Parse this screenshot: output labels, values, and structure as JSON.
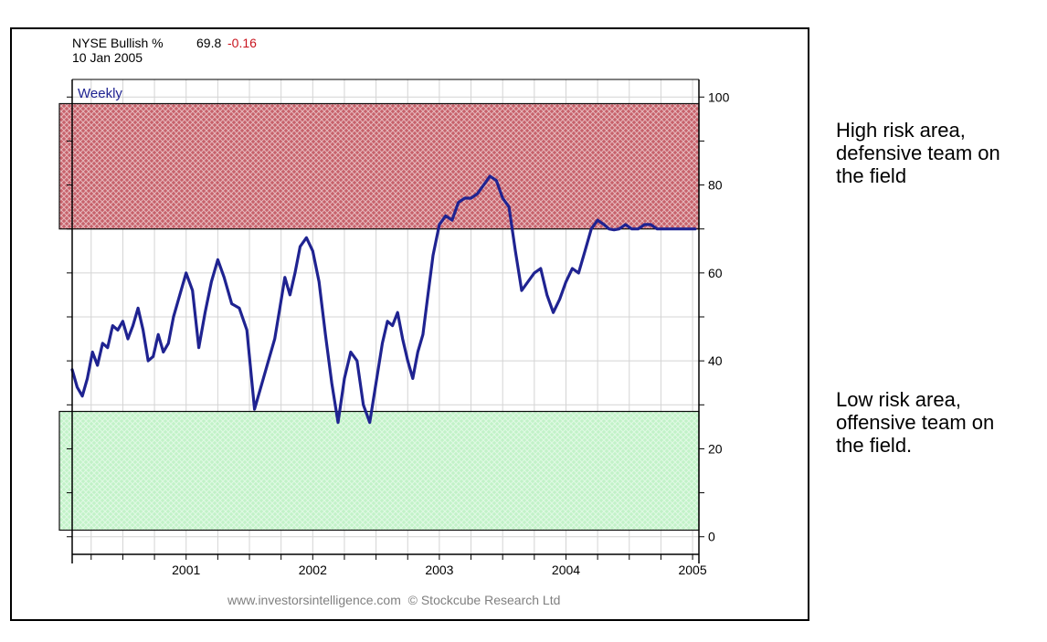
{
  "chart_data": {
    "type": "line",
    "title": {
      "series_name": "NYSE Bullish %",
      "last_value": "69.8",
      "change": "-0.16",
      "date": "10 Jan 2005"
    },
    "period_label": "Weekly",
    "footer": "www.investorsintelligence.com  © Stockcube Research Ltd",
    "x_ticks": [
      {
        "label": "2001",
        "value": 2001.0
      },
      {
        "label": "2002",
        "value": 2002.0
      },
      {
        "label": "2003",
        "value": 2003.0
      },
      {
        "label": "2004",
        "value": 2004.0
      },
      {
        "label": "2005",
        "value": 2005.0
      }
    ],
    "y_ticks": [
      {
        "label": "0",
        "value": 0
      },
      {
        "label": "20",
        "value": 20
      },
      {
        "label": "40",
        "value": 40
      },
      {
        "label": "60",
        "value": 60
      },
      {
        "label": "80",
        "value": 80
      },
      {
        "label": "100",
        "value": 100
      }
    ],
    "xlim": [
      2000.1,
      2005.05
    ],
    "ylim": [
      -4,
      104
    ],
    "grid": true,
    "bands": [
      {
        "name": "high-risk-band",
        "from": 70,
        "to": 98.5,
        "color": "#c0505a"
      },
      {
        "name": "low-risk-band",
        "from": 1.5,
        "to": 28.5,
        "color": "#b6efc0"
      }
    ],
    "series": [
      {
        "color": "#1f2391",
        "x": [
          2000.1,
          2000.14,
          2000.18,
          2000.22,
          2000.26,
          2000.3,
          2000.34,
          2000.38,
          2000.42,
          2000.46,
          2000.5,
          2000.54,
          2000.58,
          2000.62,
          2000.66,
          2000.7,
          2000.74,
          2000.78,
          2000.82,
          2000.86,
          2000.9,
          2000.95,
          2001.0,
          2001.05,
          2001.1,
          2001.15,
          2001.2,
          2001.25,
          2001.3,
          2001.36,
          2001.42,
          2001.48,
          2001.54,
          2001.6,
          2001.65,
          2001.7,
          2001.74,
          2001.78,
          2001.82,
          2001.86,
          2001.9,
          2001.95,
          2002.0,
          2002.05,
          2002.1,
          2002.15,
          2002.2,
          2002.25,
          2002.3,
          2002.35,
          2002.4,
          2002.45,
          2002.5,
          2002.55,
          2002.59,
          2002.63,
          2002.67,
          2002.71,
          2002.75,
          2002.79,
          2002.83,
          2002.87,
          2002.91,
          2002.95,
          2003.0,
          2003.05,
          2003.1,
          2003.15,
          2003.2,
          2003.25,
          2003.3,
          2003.35,
          2003.4,
          2003.45,
          2003.5,
          2003.55,
          2003.6,
          2003.65,
          2003.7,
          2003.75,
          2003.8,
          2003.85,
          2003.9,
          2003.95,
          2004.0,
          2004.05,
          2004.1,
          2004.15,
          2004.2,
          2004.25,
          2004.3,
          2004.34,
          2004.38,
          2004.42,
          2004.47,
          2004.52,
          2004.57,
          2004.62,
          2004.67,
          2004.72,
          2004.77,
          2004.82,
          2004.87,
          2004.92,
          2004.97,
          2005.02
        ],
        "y": [
          38,
          34,
          32,
          36,
          42,
          39,
          44,
          43,
          48,
          47,
          49,
          45,
          48,
          52,
          47,
          40,
          41,
          46,
          42,
          44,
          50,
          55,
          60,
          56,
          43,
          51,
          58,
          63,
          59,
          53,
          52,
          47,
          29,
          35,
          40,
          45,
          52,
          59,
          55,
          60,
          66,
          68,
          65,
          58,
          46,
          35,
          26,
          36,
          42,
          40,
          30,
          26,
          35,
          44,
          49,
          48,
          51,
          45,
          40,
          36,
          42,
          46,
          55,
          64,
          71,
          73,
          72,
          76,
          77,
          77,
          78,
          80,
          82,
          81,
          77,
          75,
          65,
          56,
          58,
          60,
          61,
          55,
          51,
          54,
          58,
          61,
          60,
          65,
          70,
          72,
          71,
          70,
          69.8,
          70,
          71,
          70,
          70,
          71,
          71,
          70,
          70,
          70,
          70,
          70,
          70,
          70
        ]
      }
    ]
  },
  "annotations": {
    "high_risk": [
      "High risk area,",
      "defensive team on",
      "the field"
    ],
    "low_risk": [
      "Low risk area,",
      "offensive team on",
      "the field."
    ]
  }
}
